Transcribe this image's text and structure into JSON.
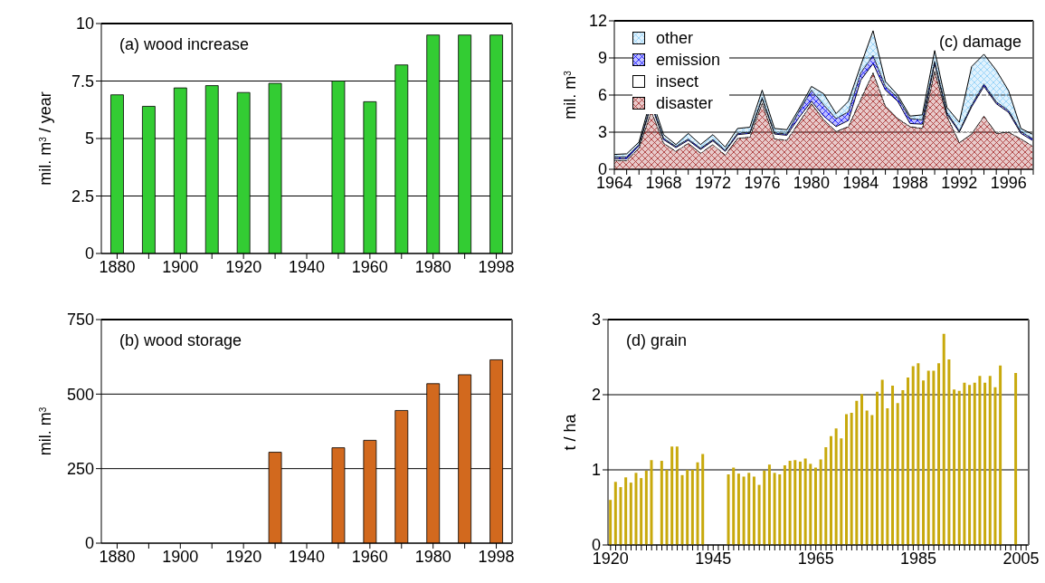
{
  "chart_data": [
    {
      "type": "bar",
      "title": "(a) wood increase",
      "ylabel": "mil. m$^{3}$ / year",
      "categories": [
        "1880",
        null,
        "1900",
        null,
        "1920",
        null,
        "1940",
        null,
        "1960",
        null,
        "1980",
        null,
        "1998"
      ],
      "values": [
        6.9,
        6.4,
        7.2,
        7.3,
        7.0,
        7.4,
        null,
        7.5,
        6.6,
        8.2,
        9.5,
        9.5,
        9.5
      ],
      "color": "#33cc33",
      "ylim": [
        0,
        10
      ],
      "yticks": [
        0,
        2.5,
        5,
        7.5,
        10
      ],
      "grid": "y"
    },
    {
      "type": "area",
      "title": "(c) damage",
      "ylabel": "mil. m$^{3}$",
      "stacked": true,
      "legend": "top left",
      "x": [
        1964,
        1965,
        1966,
        1967,
        1968,
        1969,
        1970,
        1971,
        1972,
        1973,
        1974,
        1975,
        1976,
        1977,
        1978,
        1979,
        1980,
        1981,
        1982,
        1983,
        1984,
        1985,
        1986,
        1987,
        1988,
        1989,
        1990,
        1991,
        1992,
        1993,
        1994,
        1995,
        1996,
        1997,
        1998
      ],
      "series": [
        {
          "name": "disaster",
          "color": "#a52a2a",
          "values": [
            0.7,
            0.7,
            1.7,
            4.7,
            2.1,
            1.45,
            2.1,
            1.3,
            2.0,
            1.15,
            2.5,
            2.6,
            5.35,
            2.45,
            2.35,
            3.8,
            5.3,
            4.0,
            3.05,
            3.45,
            5.65,
            7.8,
            5.1,
            4.1,
            3.45,
            3.3,
            7.95,
            4.3,
            2.15,
            2.85,
            4.3,
            2.9,
            3.0,
            2.45,
            1.85
          ]
        },
        {
          "name": "insect",
          "color": "#ffffff",
          "values": [
            0.15,
            0.15,
            0.2,
            0.5,
            0.3,
            0.3,
            0.25,
            0.3,
            0.3,
            0.3,
            0.3,
            0.3,
            0.35,
            0.4,
            0.4,
            0.4,
            0.2,
            0.3,
            0.4,
            0.5,
            1.55,
            0.75,
            1.3,
            1.4,
            0.25,
            0.35,
            0.6,
            0.15,
            0.85,
            2.2,
            2.4,
            2.4,
            1.6,
            0.45,
            0.45
          ]
        },
        {
          "name": "emission",
          "color": "#0000ff",
          "values": [
            0.15,
            0.15,
            0.1,
            0.2,
            0.1,
            0.1,
            0.1,
            0.1,
            0.1,
            0.1,
            0.1,
            0.1,
            0.1,
            0.1,
            0.1,
            0.5,
            0.9,
            0.9,
            0.65,
            0.7,
            0.6,
            0.65,
            0.3,
            0.3,
            0.4,
            0.35,
            0.2,
            0.15,
            0.1,
            0.15,
            0.2,
            0.15,
            0.15,
            0.15,
            0.15
          ]
        },
        {
          "name": "other",
          "color": "#88cdf6",
          "values": [
            0.2,
            0.25,
            0.2,
            0.4,
            0.3,
            0.15,
            0.45,
            0.3,
            0.4,
            0.25,
            0.4,
            0.4,
            0.6,
            0.35,
            0.35,
            0.2,
            0.3,
            0.9,
            0.4,
            0.85,
            0.6,
            2.0,
            0.4,
            0.2,
            0.2,
            0.4,
            0.85,
            0.4,
            0.7,
            3.1,
            2.4,
            2.55,
            1.6,
            0.25,
            0.35
          ]
        }
      ],
      "xlim": [
        1964,
        1998
      ],
      "xticks": [
        1964,
        {
          "value": 1965,
          "label": null
        },
        {
          "value": 1966,
          "label": null
        },
        {
          "value": 1967,
          "label": null
        },
        1968,
        {
          "value": 1969,
          "label": null
        },
        {
          "value": 1970,
          "label": null
        },
        {
          "value": 1971,
          "label": null
        },
        1972,
        {
          "value": 1973,
          "label": null
        },
        {
          "value": 1974,
          "label": null
        },
        {
          "value": 1975,
          "label": null
        },
        1976,
        {
          "value": 1977,
          "label": null
        },
        {
          "value": 1978,
          "label": null
        },
        {
          "value": 1979,
          "label": null
        },
        1980,
        {
          "value": 1981,
          "label": null
        },
        {
          "value": 1982,
          "label": null
        },
        {
          "value": 1983,
          "label": null
        },
        1984,
        {
          "value": 1985,
          "label": null
        },
        {
          "value": 1986,
          "label": null
        },
        {
          "value": 1987,
          "label": null
        },
        1988,
        {
          "value": 1989,
          "label": null
        },
        {
          "value": 1990,
          "label": null
        },
        {
          "value": 1991,
          "label": null
        },
        1992,
        {
          "value": 1993,
          "label": null
        },
        {
          "value": 1994,
          "label": null
        },
        {
          "value": 1995,
          "label": null
        },
        1996,
        {
          "value": 1997,
          "label": null
        },
        {
          "value": 1998,
          "label": null
        }
      ],
      "ylim": [
        0,
        12
      ],
      "yticks": [
        0,
        3,
        6,
        9,
        12
      ],
      "grid": "y"
    },
    {
      "type": "bar",
      "title": "(b) wood storage",
      "ylabel": "mil. m$^{3}$",
      "categories": [
        "1880",
        null,
        "1900",
        null,
        "1920",
        null,
        "1940",
        null,
        "1960",
        null,
        "1980",
        null,
        "1998"
      ],
      "values": [
        null,
        null,
        null,
        null,
        null,
        305,
        null,
        320,
        345,
        445,
        535,
        565,
        615
      ],
      "color": "#d2691e",
      "ylim": [
        0,
        750
      ],
      "yticks": [
        0,
        250,
        500,
        750
      ],
      "grid": "y"
    },
    {
      "type": "bar",
      "title": "(d) grain",
      "ylabel": "t / ha",
      "categories": [
        "1920",
        null,
        null,
        null,
        null,
        null,
        null,
        null,
        null,
        null,
        null,
        null,
        null,
        null,
        null,
        null,
        null,
        null,
        null,
        null,
        "1945",
        null,
        null,
        null,
        null,
        null,
        null,
        null,
        null,
        null,
        null,
        null,
        null,
        null,
        null,
        null,
        null,
        null,
        null,
        null,
        "1965",
        null,
        null,
        null,
        null,
        null,
        null,
        null,
        null,
        null,
        null,
        null,
        null,
        null,
        null,
        null,
        null,
        null,
        null,
        null,
        "1985",
        null,
        null,
        null,
        null,
        null,
        null,
        null,
        null,
        null,
        null,
        null,
        null,
        null,
        null,
        null,
        null,
        null,
        null,
        null,
        "2005",
        null
      ],
      "values": [
        0.6,
        0.84,
        0.77,
        0.9,
        0.83,
        0.96,
        0.89,
        0.99,
        1.13,
        null,
        1.12,
        1.0,
        1.31,
        1.31,
        0.93,
        1.0,
        1.0,
        1.1,
        1.21,
        null,
        null,
        null,
        null,
        0.94,
        1.03,
        0.95,
        0.91,
        0.96,
        0.91,
        0.8,
        0.99,
        1.07,
        0.96,
        0.94,
        1.06,
        1.12,
        1.13,
        1.11,
        1.15,
        1.08,
        1.03,
        1.14,
        1.3,
        1.45,
        1.55,
        1.42,
        1.74,
        1.76,
        1.92,
        2.01,
        1.79,
        1.73,
        2.04,
        2.2,
        1.82,
        2.12,
        1.89,
        2.06,
        2.23,
        2.38,
        2.42,
        2.19,
        2.32,
        2.32,
        2.42,
        2.81,
        2.47,
        2.07,
        2.05,
        2.16,
        2.13,
        2.16,
        2.25,
        2.16,
        2.25,
        2.1,
        2.39,
        null,
        null,
        2.29,
        null,
        null
      ],
      "color": "#c8a90c",
      "ylim": [
        0,
        3
      ],
      "yticks": [
        0,
        1,
        2,
        3
      ],
      "grid": "y"
    }
  ]
}
